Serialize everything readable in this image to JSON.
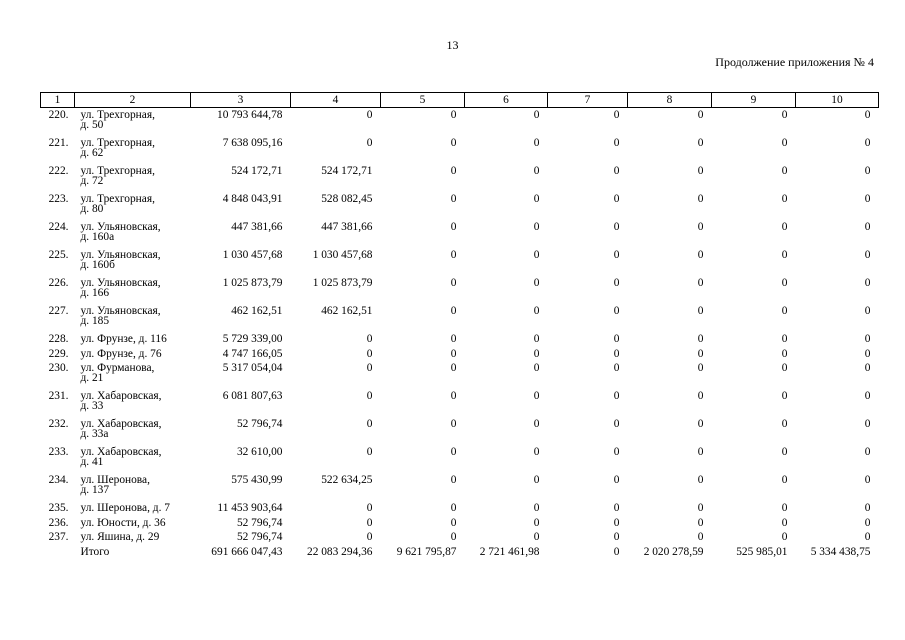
{
  "page_number": "13",
  "subtitle": "Продолжение приложения № 4",
  "headers": [
    "1",
    "2",
    "3",
    "4",
    "5",
    "6",
    "7",
    "8",
    "9",
    "10"
  ],
  "rows": [
    {
      "idx": "220.",
      "addr1": "ул. Трехгорная,",
      "addr2": "д. 50",
      "v": [
        "10 793 644,78",
        "0",
        "0",
        "0",
        "0",
        "0",
        "0",
        "0"
      ]
    },
    {
      "idx": "221.",
      "addr1": "ул. Трехгорная,",
      "addr2": "д. 62",
      "v": [
        "7 638 095,16",
        "0",
        "0",
        "0",
        "0",
        "0",
        "0",
        "0"
      ]
    },
    {
      "idx": "222.",
      "addr1": "ул. Трехгорная,",
      "addr2": "д. 72",
      "v": [
        "524 172,71",
        "524 172,71",
        "0",
        "0",
        "0",
        "0",
        "0",
        "0"
      ]
    },
    {
      "idx": "223.",
      "addr1": "ул. Трехгорная,",
      "addr2": "д. 80",
      "v": [
        "4 848 043,91",
        "528 082,45",
        "0",
        "0",
        "0",
        "0",
        "0",
        "0"
      ]
    },
    {
      "idx": "224.",
      "addr1": "ул. Ульяновская,",
      "addr2": "д. 160а",
      "v": [
        "447 381,66",
        "447 381,66",
        "0",
        "0",
        "0",
        "0",
        "0",
        "0"
      ]
    },
    {
      "idx": "225.",
      "addr1": "ул. Ульяновская,",
      "addr2": "д. 160б",
      "v": [
        "1 030 457,68",
        "1 030 457,68",
        "0",
        "0",
        "0",
        "0",
        "0",
        "0"
      ]
    },
    {
      "idx": "226.",
      "addr1": "ул. Ульяновская,",
      "addr2": "д. 166",
      "v": [
        "1 025 873,79",
        "1 025 873,79",
        "0",
        "0",
        "0",
        "0",
        "0",
        "0"
      ]
    },
    {
      "idx": "227.",
      "addr1": "ул. Ульяновская,",
      "addr2": "д. 185",
      "v": [
        "462 162,51",
        "462 162,51",
        "0",
        "0",
        "0",
        "0",
        "0",
        "0"
      ]
    },
    {
      "idx": "228.",
      "addr1": "ул. Фрунзе, д. 116",
      "addr2": "",
      "v": [
        "5 729 339,00",
        "0",
        "0",
        "0",
        "0",
        "0",
        "0",
        "0"
      ]
    },
    {
      "idx": "229.",
      "addr1": "ул. Фрунзе, д. 76",
      "addr2": "",
      "v": [
        "4 747 166,05",
        "0",
        "0",
        "0",
        "0",
        "0",
        "0",
        "0"
      ]
    },
    {
      "idx": "230.",
      "addr1": "ул. Фурманова,",
      "addr2": "д. 21",
      "v": [
        "5 317 054,04",
        "0",
        "0",
        "0",
        "0",
        "0",
        "0",
        "0"
      ]
    },
    {
      "idx": "231.",
      "addr1": "ул. Хабаровская,",
      "addr2": "д. 33",
      "v": [
        "6 081 807,63",
        "0",
        "0",
        "0",
        "0",
        "0",
        "0",
        "0"
      ]
    },
    {
      "idx": "232.",
      "addr1": "ул. Хабаровская,",
      "addr2": "д. 33а",
      "v": [
        "52 796,74",
        "0",
        "0",
        "0",
        "0",
        "0",
        "0",
        "0"
      ]
    },
    {
      "idx": "233.",
      "addr1": "ул. Хабаровская,",
      "addr2": "д. 41",
      "v": [
        "32 610,00",
        "0",
        "0",
        "0",
        "0",
        "0",
        "0",
        "0"
      ]
    },
    {
      "idx": "234.",
      "addr1": "ул. Шеронова,",
      "addr2": "д. 137",
      "v": [
        "575 430,99",
        "522 634,25",
        "0",
        "0",
        "0",
        "0",
        "0",
        "0"
      ]
    },
    {
      "idx": "235.",
      "addr1": "ул. Шеронова, д. 7",
      "addr2": "",
      "v": [
        "11 453 903,64",
        "0",
        "0",
        "0",
        "0",
        "0",
        "0",
        "0"
      ]
    },
    {
      "idx": "236.",
      "addr1": "ул. Юности, д. 36",
      "addr2": "",
      "v": [
        "52 796,74",
        "0",
        "0",
        "0",
        "0",
        "0",
        "0",
        "0"
      ]
    },
    {
      "idx": "237.",
      "addr1": "ул. Яшина, д. 29",
      "addr2": "",
      "v": [
        "52 796,74",
        "0",
        "0",
        "0",
        "0",
        "0",
        "0",
        "0"
      ]
    }
  ],
  "total": {
    "label": "Итого",
    "v": [
      "691 666 047,43",
      "22 083 294,36",
      "9 621 795,87",
      "2 721 461,98",
      "0",
      "2 020 278,59",
      "525 985,01",
      "5 334 438,75"
    ]
  }
}
